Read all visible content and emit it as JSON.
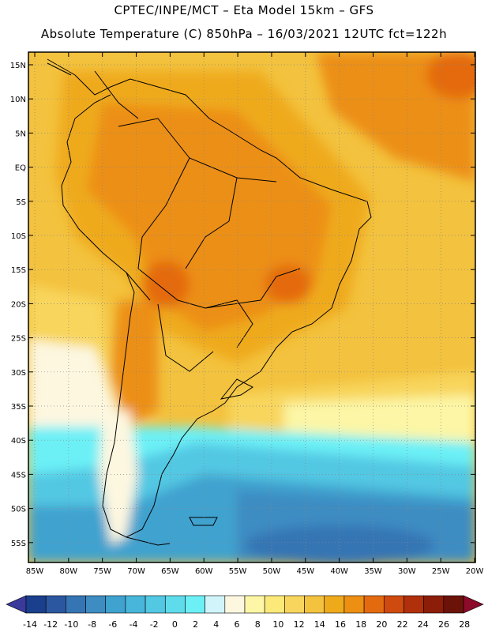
{
  "header": {
    "line1": "CPTEC/INPE/MCT –   Eta Model 15km – GFS",
    "line2": "Absolute Temperature (C) 850hPa – 16/03/2021 12UTC fct=122h"
  },
  "axes": {
    "lat_labels": [
      "15N",
      "10N",
      "5N",
      "EQ",
      "5S",
      "10S",
      "15S",
      "20S",
      "25S",
      "30S",
      "35S",
      "40S",
      "45S",
      "50S",
      "55S"
    ],
    "lon_labels": [
      "85W",
      "80W",
      "75W",
      "70W",
      "65W",
      "60W",
      "55W",
      "50W",
      "45W",
      "40W",
      "35W",
      "30W",
      "25W",
      "20W"
    ]
  },
  "colorbar": {
    "labels": [
      "-14",
      "-12",
      "-10",
      "-8",
      "-6",
      "-4",
      "-2",
      "0",
      "2",
      "4",
      "6",
      "8",
      "10",
      "12",
      "14",
      "16",
      "18",
      "20",
      "22",
      "24",
      "26",
      "28"
    ],
    "colors": [
      "#1a3f8c",
      "#2b57a0",
      "#3575b4",
      "#3d8cc2",
      "#3fa2cf",
      "#47b6da",
      "#52c8e3",
      "#5edcec",
      "#6cf0f6",
      "#d0f4fa",
      "#fdf7e0",
      "#fcf6a6",
      "#fbe97a",
      "#f8d55c",
      "#f3c23e",
      "#efaa1c",
      "#ec8f12",
      "#e46a10",
      "#cf4a0e",
      "#b0300c",
      "#8c1d09",
      "#6b1309"
    ],
    "min_color": "#3a3a9c",
    "max_color": "#8c0a2a"
  }
}
